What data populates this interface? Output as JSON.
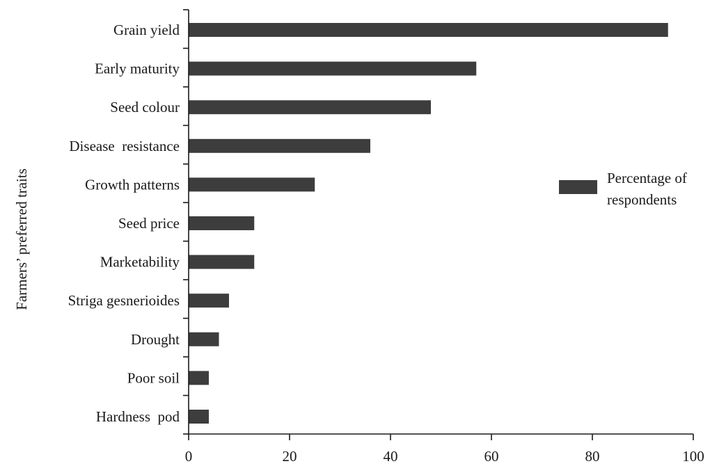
{
  "chart_data": {
    "type": "bar",
    "orientation": "horizontal",
    "categories": [
      "Grain yield",
      "Early maturity",
      "Seed colour",
      "Disease  resistance",
      "Growth patterns",
      "Seed price",
      "Marketability",
      "Striga gesnerioides",
      "Drought",
      "Poor soil",
      "Hardness  pod"
    ],
    "series": [
      {
        "name": "Percentage of respondents",
        "values": [
          95,
          57,
          48,
          36,
          25,
          13,
          13,
          8,
          6,
          4,
          4
        ]
      }
    ],
    "title": "",
    "xlabel": "",
    "ylabel": "Farmers’ preferred traits",
    "xlim": [
      0,
      100
    ],
    "xticks": [
      0,
      20,
      40,
      60,
      80,
      100
    ],
    "grid": false,
    "legend": {
      "position": "right",
      "lines": [
        "Percentage of",
        "respondents"
      ]
    },
    "colors": {
      "bar": "#3d3d3d",
      "axis": "#1a1a1a"
    }
  }
}
